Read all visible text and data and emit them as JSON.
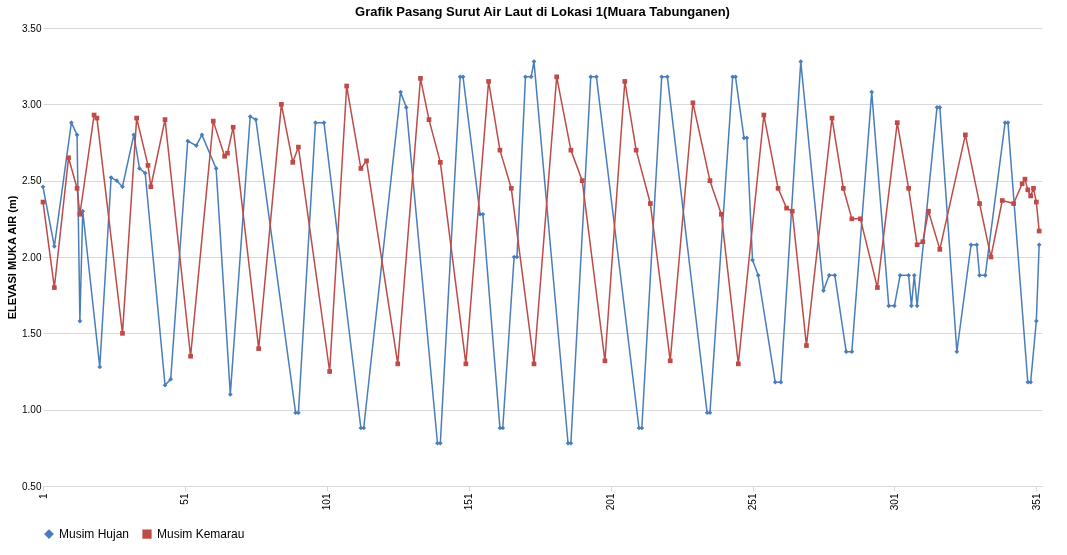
{
  "chart_data": {
    "type": "line",
    "title": "Grafik Pasang Surut Air Laut di Lokasi 1(Muara Tabunganen)",
    "ylabel": "ELEVASI MUKA AIR (m)",
    "xlim": [
      1,
      353
    ],
    "xticks": [
      1,
      51,
      101,
      151,
      201,
      251,
      301,
      351
    ],
    "ylim": [
      0.5,
      3.5
    ],
    "yticks": [
      {
        "value": 0.5,
        "label": "0.50"
      },
      {
        "value": 1.0,
        "label": "1.00"
      },
      {
        "value": 1.5,
        "label": "1.50"
      },
      {
        "value": 2.0,
        "label": "2.00"
      },
      {
        "value": 2.5,
        "label": "2.50"
      },
      {
        "value": 3.0,
        "label": "3.00"
      },
      {
        "value": 3.5,
        "label": "3.50"
      }
    ],
    "grid": "y",
    "legend": "bottom",
    "line_style": "solid",
    "series": [
      {
        "name": "Musim Hujan",
        "color": "#4a7ebb",
        "marker": "diamond",
        "x": [
          1,
          5,
          11,
          13,
          14,
          15,
          21,
          25,
          27,
          29,
          33,
          35,
          37,
          44,
          46,
          52,
          55,
          57,
          62,
          67,
          74,
          76,
          90,
          91,
          97,
          100,
          113,
          114,
          127,
          129,
          140,
          141,
          148,
          149,
          155,
          156,
          162,
          163,
          167,
          168,
          171,
          173,
          174,
          186,
          187,
          194,
          196,
          211,
          212,
          219,
          221,
          235,
          236,
          244,
          245,
          248,
          249,
          251,
          253,
          259,
          261,
          268,
          276,
          278,
          280,
          284,
          286,
          293,
          299,
          301,
          303,
          306,
          307,
          308,
          309,
          316,
          317,
          323,
          328,
          330,
          331,
          333,
          340,
          341,
          348,
          349,
          351,
          352
        ],
        "values": [
          2.46,
          2.07,
          2.88,
          2.8,
          1.58,
          2.3,
          1.28,
          2.52,
          2.5,
          2.46,
          2.8,
          2.58,
          2.55,
          1.16,
          1.2,
          2.76,
          2.73,
          2.8,
          2.58,
          1.1,
          2.92,
          2.9,
          0.98,
          0.98,
          2.88,
          2.88,
          0.88,
          0.88,
          3.08,
          2.98,
          0.78,
          0.78,
          3.18,
          3.18,
          2.28,
          2.28,
          0.88,
          0.88,
          2.0,
          2.0,
          3.18,
          3.18,
          3.28,
          0.78,
          0.78,
          3.18,
          3.18,
          0.88,
          0.88,
          3.18,
          3.18,
          0.98,
          0.98,
          3.18,
          3.18,
          2.78,
          2.78,
          1.98,
          1.88,
          1.18,
          1.18,
          3.28,
          1.78,
          1.88,
          1.88,
          1.38,
          1.38,
          3.08,
          1.68,
          1.68,
          1.88,
          1.88,
          1.68,
          1.88,
          1.68,
          2.98,
          2.98,
          1.38,
          2.08,
          2.08,
          1.88,
          1.88,
          2.88,
          2.88,
          1.18,
          1.18,
          1.58,
          2.08
        ]
      },
      {
        "name": "Musim Kemarau",
        "color": "#be4b48",
        "marker": "square",
        "x": [
          1,
          5,
          10,
          13,
          14,
          19,
          20,
          29,
          34,
          38,
          39,
          44,
          53,
          61,
          65,
          66,
          68,
          77,
          85,
          89,
          91,
          102,
          108,
          113,
          115,
          126,
          134,
          137,
          141,
          150,
          158,
          162,
          166,
          174,
          182,
          187,
          191,
          199,
          206,
          210,
          215,
          222,
          230,
          236,
          240,
          246,
          255,
          260,
          263,
          265,
          270,
          279,
          283,
          286,
          289,
          295,
          302,
          306,
          309,
          311,
          313,
          317,
          326,
          331,
          335,
          339,
          343,
          346,
          347,
          348,
          349,
          350,
          351,
          352
        ],
        "values": [
          2.36,
          1.8,
          2.65,
          2.45,
          2.28,
          2.93,
          2.91,
          1.5,
          2.91,
          2.6,
          2.46,
          2.9,
          1.35,
          2.89,
          2.66,
          2.68,
          2.85,
          1.4,
          3.0,
          2.62,
          2.72,
          1.25,
          3.12,
          2.58,
          2.63,
          1.3,
          3.17,
          2.9,
          2.62,
          1.3,
          3.15,
          2.7,
          2.45,
          1.3,
          3.18,
          2.7,
          2.5,
          1.32,
          3.15,
          2.7,
          2.35,
          1.32,
          3.01,
          2.5,
          2.28,
          1.3,
          2.93,
          2.45,
          2.32,
          2.3,
          1.42,
          2.91,
          2.45,
          2.25,
          2.25,
          1.8,
          2.88,
          2.45,
          2.08,
          2.1,
          2.3,
          2.05,
          2.8,
          2.35,
          2.0,
          2.37,
          2.35,
          2.48,
          2.51,
          2.44,
          2.4,
          2.45,
          2.36,
          2.17
        ]
      }
    ]
  }
}
